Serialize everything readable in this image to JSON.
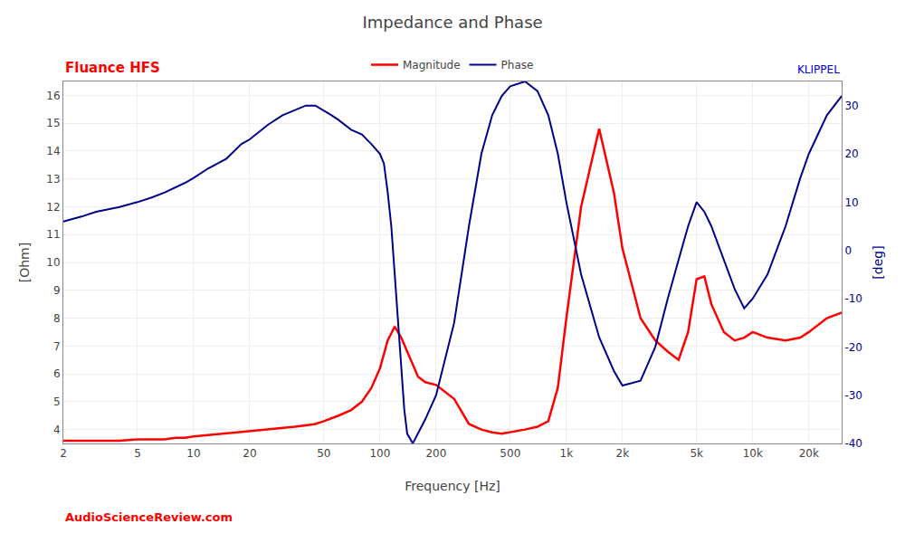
{
  "chart_data": {
    "type": "line",
    "title": "Impedance and Phase",
    "subtitle": {
      "text": "Fluance HFS",
      "color": "#ff0000"
    },
    "annotations": [
      {
        "text": "KLIPPEL",
        "color": "#0000cc"
      },
      {
        "text": "AudioScienceReview.com",
        "color": "#ff0000"
      }
    ],
    "xlabel": "Frequency [Hz]",
    "ylabel": "[Ohm]",
    "y2label": "[deg]",
    "log": "x",
    "grid": true,
    "legend": "top",
    "xlim": [
      2,
      30000
    ],
    "xticks": [
      2,
      5,
      10,
      20,
      50,
      100,
      200,
      500,
      {
        "value": 1000,
        "label": "1k"
      },
      {
        "value": 2000,
        "label": "2k"
      },
      {
        "value": 5000,
        "label": "5k"
      },
      {
        "value": 10000,
        "label": "10k"
      },
      {
        "value": 20000,
        "label": "20k"
      }
    ],
    "ylim": [
      3.5,
      16.5
    ],
    "yticks": [
      4,
      5,
      6,
      7,
      8,
      9,
      10,
      11,
      12,
      13,
      14,
      15,
      16
    ],
    "y2lim": [
      -40,
      35
    ],
    "y2ticks": [
      -40,
      -30,
      -20,
      -10,
      0,
      10,
      20,
      30
    ],
    "series": [
      {
        "name": "Magnitude",
        "color": "#ff0000",
        "axis": "y",
        "x": [
          2,
          2.5,
          3,
          4,
          5,
          6,
          7,
          8,
          9,
          10,
          12,
          15,
          18,
          20,
          25,
          30,
          35,
          40,
          45,
          50,
          55,
          60,
          70,
          80,
          90,
          100,
          110,
          120,
          130,
          140,
          150,
          160,
          175,
          200,
          250,
          300,
          350,
          400,
          450,
          500,
          600,
          700,
          800,
          900,
          1000,
          1200,
          1500,
          1800,
          2000,
          2500,
          3000,
          3500,
          4000,
          4500,
          5000,
          5500,
          6000,
          7000,
          8000,
          9000,
          10000,
          12000,
          15000,
          18000,
          20000,
          25000,
          30000
        ],
        "values": [
          3.6,
          3.6,
          3.6,
          3.6,
          3.65,
          3.65,
          3.65,
          3.7,
          3.7,
          3.75,
          3.8,
          3.85,
          3.9,
          3.95,
          4.0,
          4.05,
          4.1,
          4.15,
          4.2,
          4.3,
          4.4,
          4.5,
          4.7,
          5.0,
          5.5,
          6.2,
          7.2,
          7.7,
          7.3,
          6.8,
          6.3,
          5.9,
          5.7,
          5.6,
          5.1,
          4.2,
          4.0,
          3.9,
          3.85,
          3.9,
          4.0,
          4.1,
          4.3,
          5.5,
          8.0,
          12.0,
          14.8,
          12.5,
          10.5,
          8.0,
          7.2,
          6.8,
          6.5,
          7.5,
          9.4,
          9.5,
          8.5,
          7.5,
          7.2,
          7.3,
          7.5,
          7.3,
          7.2,
          7.3,
          7.5,
          8.0,
          8.2
        ]
      },
      {
        "name": "Phase",
        "color": "#00008b",
        "axis": "y2",
        "x": [
          2,
          2.5,
          3,
          4,
          5,
          6,
          7,
          8,
          9,
          10,
          12,
          15,
          18,
          20,
          25,
          30,
          35,
          40,
          45,
          50,
          55,
          60,
          70,
          80,
          90,
          100,
          105,
          110,
          115,
          120,
          125,
          130,
          135,
          140,
          150,
          175,
          200,
          250,
          300,
          350,
          400,
          450,
          500,
          600,
          700,
          800,
          900,
          1000,
          1200,
          1500,
          1800,
          2000,
          2500,
          3000,
          3500,
          4000,
          4500,
          5000,
          5500,
          6000,
          7000,
          8000,
          9000,
          10000,
          12000,
          15000,
          18000,
          20000,
          25000,
          30000
        ],
        "values": [
          6,
          7,
          8,
          9,
          10,
          11,
          12,
          13,
          14,
          15,
          17,
          19,
          22,
          23,
          26,
          28,
          29,
          30,
          30,
          29,
          28,
          27,
          25,
          24,
          22,
          20,
          18,
          12,
          5,
          -5,
          -15,
          -25,
          -33,
          -38,
          -40,
          -35,
          -30,
          -15,
          5,
          20,
          28,
          32,
          34,
          35,
          33,
          28,
          20,
          10,
          -5,
          -18,
          -25,
          -28,
          -27,
          -20,
          -10,
          -2,
          5,
          10,
          8,
          5,
          -2,
          -8,
          -12,
          -10,
          -5,
          5,
          15,
          20,
          28,
          32
        ]
      }
    ]
  }
}
